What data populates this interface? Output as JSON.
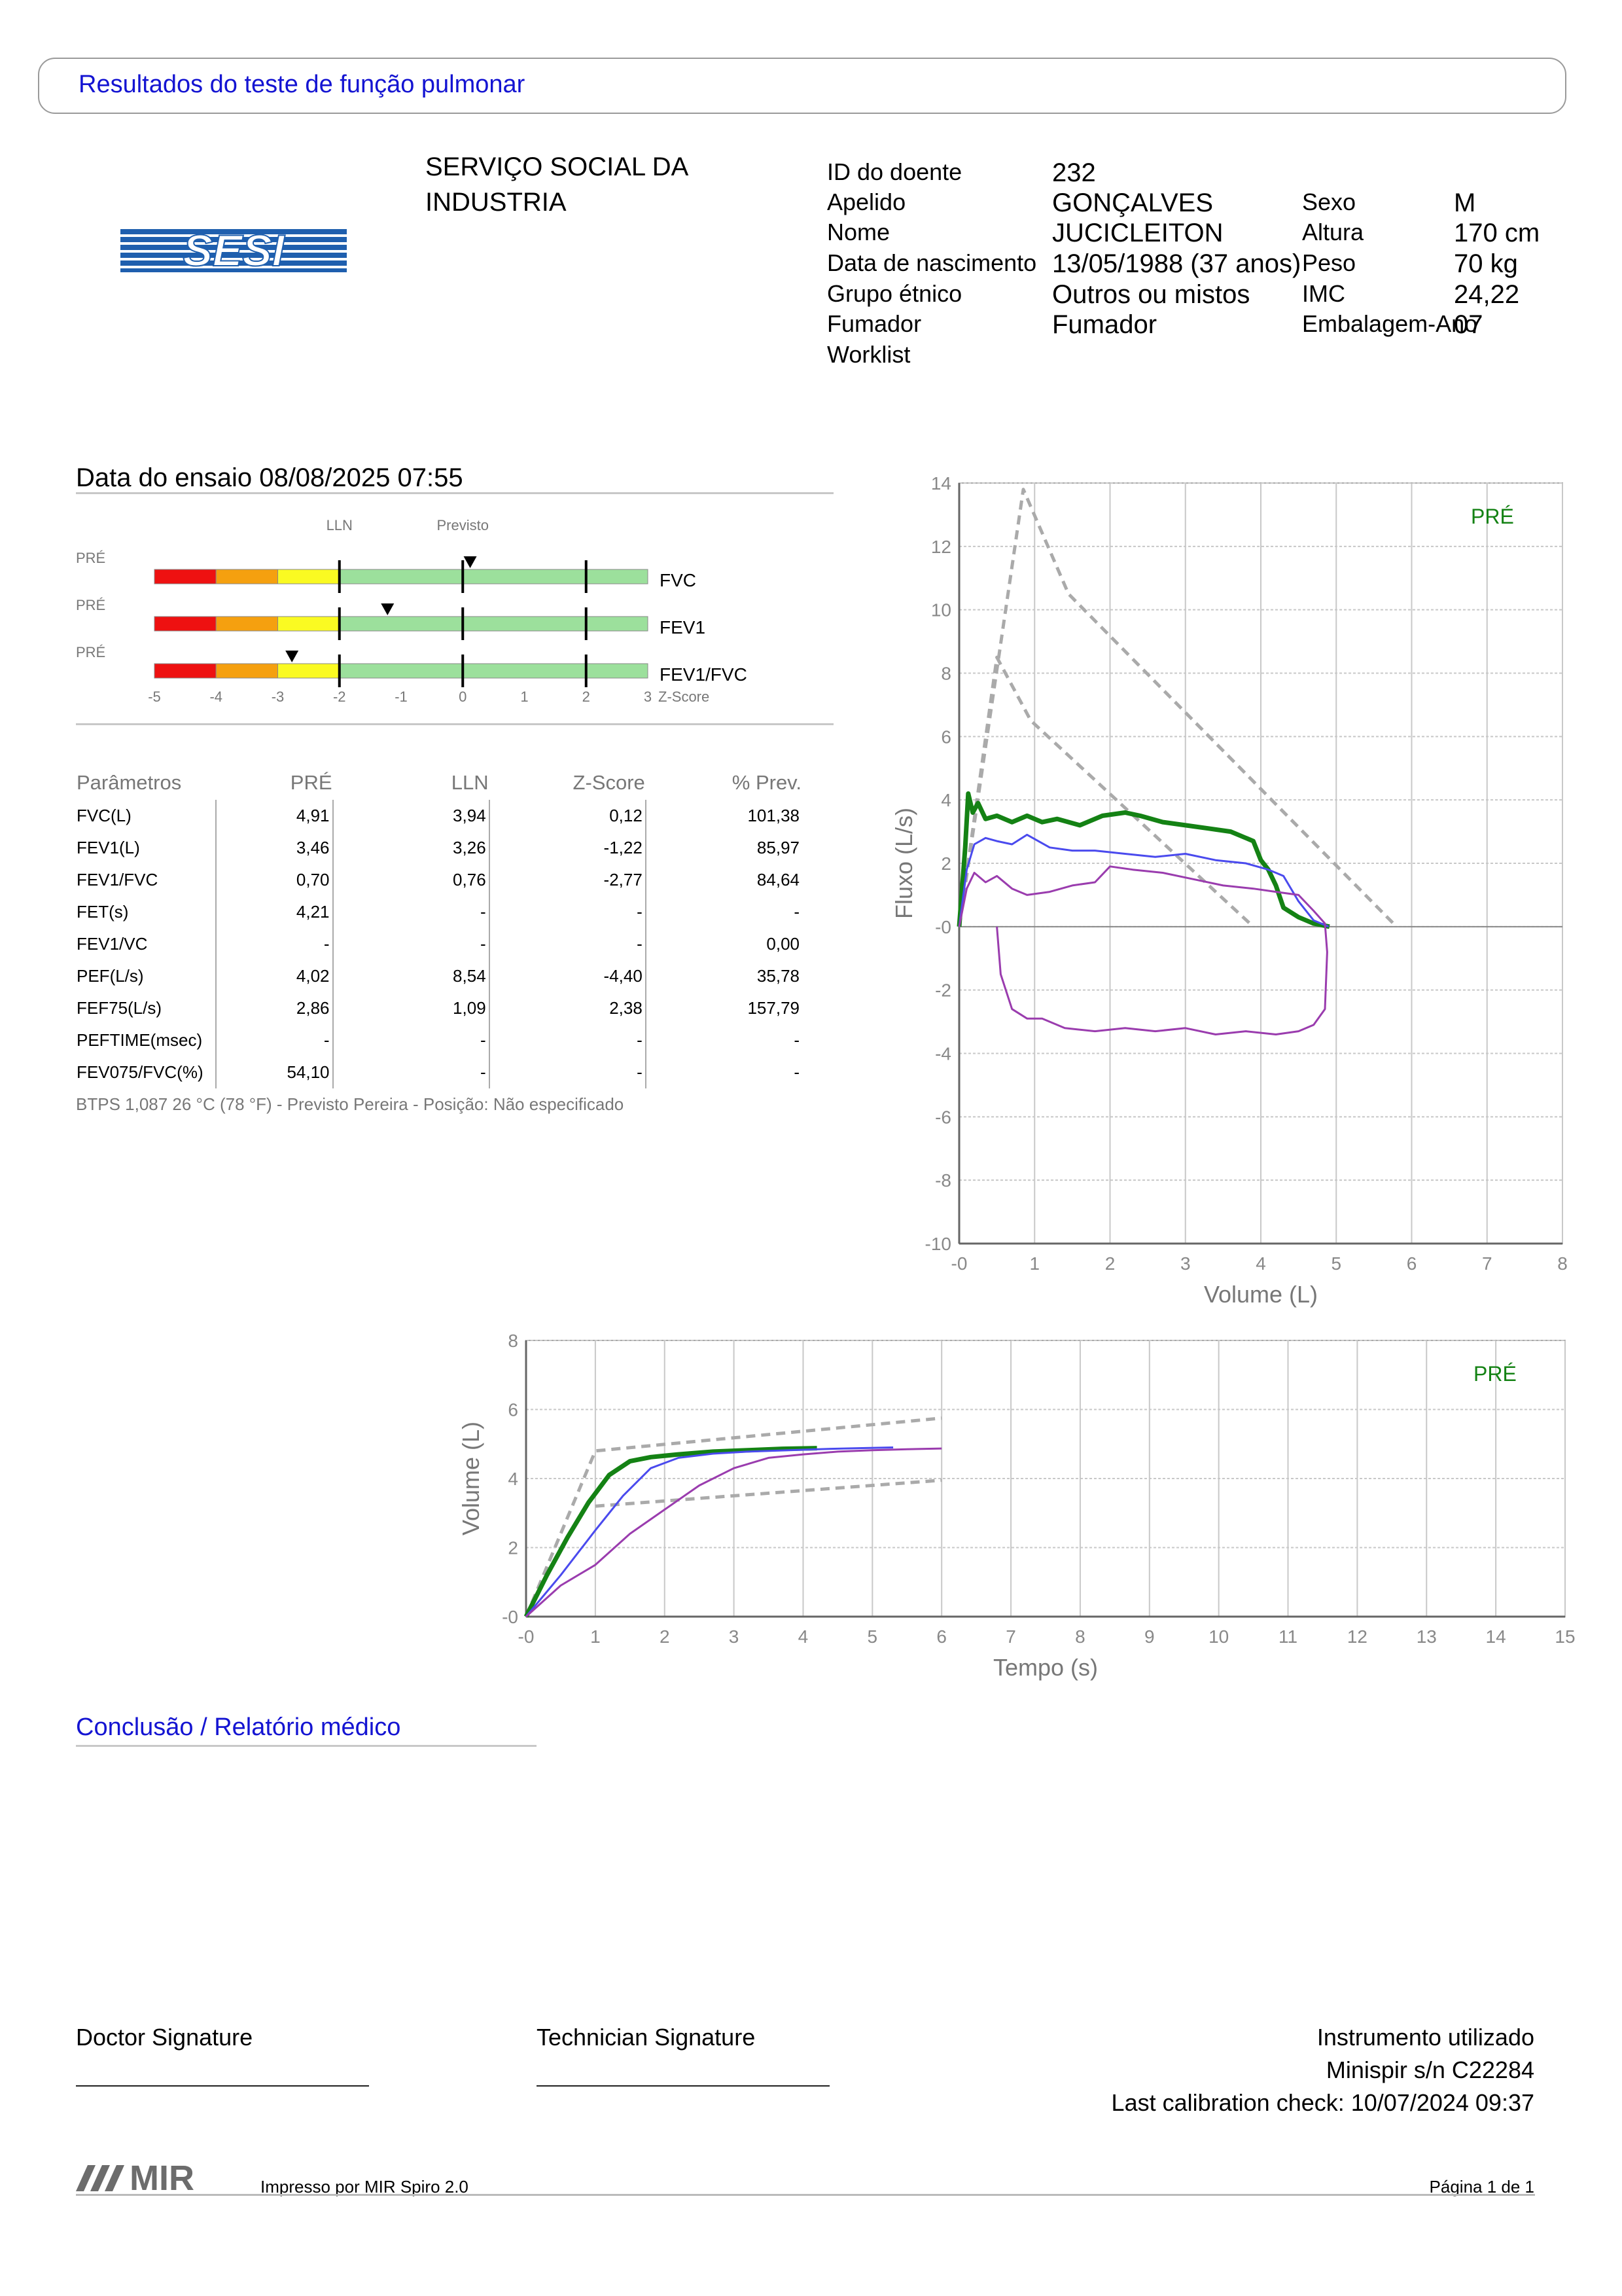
{
  "header": {
    "title": "Resultados do teste de função pulmonar"
  },
  "organization": {
    "logo_text": "SESI",
    "line1": "SERVIÇO SOCIAL DA",
    "line2": "INDUSTRIA"
  },
  "patient": {
    "id_label": "ID do doente",
    "id_value": "232",
    "surname_label": "Apelido",
    "surname_value": "GONÇALVES",
    "name_label": "Nome",
    "name_value": "JUCICLEITON",
    "dob_label": "Data de nascimento",
    "dob_value": "13/05/1988 (37 anos)",
    "ethnic_label": "Grupo étnico",
    "ethnic_value": "Outros ou mistos",
    "smoker_label": "Fumador",
    "smoker_value": "Fumador",
    "worklist_label": "Worklist",
    "sex_label": "Sexo",
    "sex_value": "M",
    "height_label": "Altura",
    "height_value": "170 cm",
    "weight_label": "Peso",
    "weight_value": "70 kg",
    "bmi_label": "IMC",
    "bmi_value": "24,22",
    "packyears_label": "Embalagem-Ano",
    "packyears_value": "07"
  },
  "test": {
    "date_label": "Data do ensaio 08/08/2025 07:55"
  },
  "zscore": {
    "lln_label": "LLN",
    "pred_label": "Previsto",
    "axis_name": "Z-Score",
    "ticks": [
      "-5",
      "-4",
      "-3",
      "-2",
      "-1",
      "0",
      "1",
      "2",
      "3"
    ],
    "bars": [
      {
        "tag": "PRÉ",
        "name": "FVC",
        "z": 0.12
      },
      {
        "tag": "PRÉ",
        "name": "FEV1",
        "z": -1.22
      },
      {
        "tag": "PRÉ",
        "name": "FEV1/FVC",
        "z": -2.77
      }
    ],
    "colors": {
      "red": "#ee1111",
      "orange": "#f5a00f",
      "yellow": "#fafa22",
      "green": "#9ce09c"
    }
  },
  "params": {
    "headers": [
      "Parâmetros",
      "PRÉ",
      "LLN",
      "Z-Score",
      "% Prev."
    ],
    "rows": [
      [
        "FVC(L)",
        "4,91",
        "3,94",
        "0,12",
        "101,38"
      ],
      [
        "FEV1(L)",
        "3,46",
        "3,26",
        "-1,22",
        "85,97"
      ],
      [
        "FEV1/FVC",
        "0,70",
        "0,76",
        "-2,77",
        "84,64"
      ],
      [
        "FET(s)",
        "4,21",
        "-",
        "-",
        "-"
      ],
      [
        "FEV1/VC",
        "-",
        "-",
        "-",
        "0,00"
      ],
      [
        "PEF(L/s)",
        "4,02",
        "8,54",
        "-4,40",
        "35,78"
      ],
      [
        "FEF75(L/s)",
        "2,86",
        "1,09",
        "2,38",
        "157,79"
      ],
      [
        "PEFTIME(msec)",
        "-",
        "-",
        "-",
        "-"
      ],
      [
        "FEV075/FVC(%)",
        "54,10",
        "-",
        "-",
        "-"
      ]
    ],
    "note": "BTPS 1,087 26 °C (78 °F) - Previsto Pereira - Posição: Não especificado"
  },
  "chart_data": [
    {
      "type": "line",
      "title": "",
      "xlabel": "Volume (L)",
      "ylabel": "Fluxo (L/s)",
      "xlim": [
        0,
        8
      ],
      "ylim": [
        -10,
        14
      ],
      "xticks": [
        "-0",
        "1",
        "2",
        "3",
        "4",
        "5",
        "6",
        "7",
        "8"
      ],
      "yticks": [
        "-10",
        "-8",
        "-6",
        "-4",
        "-2",
        "-0",
        "2",
        "4",
        "6",
        "8",
        "10",
        "12",
        "14"
      ],
      "grid": true,
      "legend": "PRÉ",
      "series": [
        {
          "color": "#aaaaaa",
          "dashed": true,
          "x": [
            0,
            0.85,
            1.45,
            5.8
          ],
          "y": [
            0,
            13.8,
            10.5,
            0
          ]
        },
        {
          "color": "#aaaaaa",
          "dashed": true,
          "x": [
            0,
            0.5,
            0.95,
            3.9
          ],
          "y": [
            0,
            8.5,
            6.5,
            0
          ]
        },
        {
          "color": "#148214",
          "bold": true,
          "x": [
            0,
            0.08,
            0.12,
            0.18,
            0.25,
            0.35,
            0.5,
            0.7,
            0.9,
            1.1,
            1.3,
            1.6,
            1.9,
            2.2,
            2.4,
            2.7,
            3.0,
            3.3,
            3.6,
            3.9,
            4.0,
            4.1,
            4.2,
            4.3,
            4.5,
            4.7,
            4.91
          ],
          "y": [
            0,
            2.5,
            4.2,
            3.6,
            3.9,
            3.4,
            3.5,
            3.3,
            3.5,
            3.3,
            3.4,
            3.2,
            3.5,
            3.6,
            3.5,
            3.3,
            3.2,
            3.1,
            3.0,
            2.7,
            2.1,
            1.8,
            1.3,
            0.6,
            0.3,
            0.1,
            0
          ]
        },
        {
          "color": "#4a4aee",
          "x": [
            0,
            0.1,
            0.2,
            0.35,
            0.5,
            0.7,
            0.9,
            1.2,
            1.5,
            1.8,
            2.2,
            2.6,
            3.0,
            3.4,
            3.8,
            4.1,
            4.3,
            4.5,
            4.7,
            4.9
          ],
          "y": [
            0,
            1.8,
            2.6,
            2.8,
            2.7,
            2.6,
            2.9,
            2.5,
            2.4,
            2.4,
            2.3,
            2.2,
            2.3,
            2.1,
            2.0,
            1.8,
            1.6,
            0.8,
            0.2,
            0
          ]
        },
        {
          "color": "#9a3cae",
          "x": [
            0,
            0.1,
            0.2,
            0.35,
            0.5,
            0.7,
            0.9,
            1.2,
            1.5,
            1.8,
            2.0,
            2.3,
            2.7,
            3.1,
            3.5,
            3.9,
            4.2,
            4.5,
            4.7,
            4.85,
            4.88,
            4.85,
            4.7,
            4.5,
            4.2,
            3.8,
            3.4,
            3.0,
            2.6,
            2.2,
            1.8,
            1.4,
            1.1,
            0.9,
            0.7,
            0.55,
            0.5
          ],
          "y": [
            0,
            1.2,
            1.7,
            1.4,
            1.6,
            1.2,
            1.0,
            1.1,
            1.3,
            1.4,
            1.9,
            1.8,
            1.7,
            1.5,
            1.3,
            1.2,
            1.1,
            1.0,
            0.5,
            0.1,
            -0.8,
            -2.6,
            -3.1,
            -3.3,
            -3.4,
            -3.3,
            -3.4,
            -3.2,
            -3.3,
            -3.2,
            -3.3,
            -3.2,
            -2.9,
            -2.9,
            -2.6,
            -1.5,
            0
          ]
        }
      ]
    },
    {
      "type": "line",
      "title": "",
      "xlabel": "Tempo (s)",
      "ylabel": "Volume (L)",
      "xlim": [
        0,
        15
      ],
      "ylim": [
        0,
        8
      ],
      "xticks": [
        "-0",
        "1",
        "2",
        "3",
        "4",
        "5",
        "6",
        "7",
        "8",
        "9",
        "10",
        "11",
        "12",
        "13",
        "14",
        "15"
      ],
      "yticks": [
        "-0",
        "2",
        "4",
        "6",
        "8"
      ],
      "grid": true,
      "legend": "PRÉ",
      "series": [
        {
          "color": "#aaaaaa",
          "dashed": true,
          "x": [
            0,
            1.0,
            6.0
          ],
          "y": [
            0,
            4.8,
            5.75
          ]
        },
        {
          "color": "#aaaaaa",
          "dashed": true,
          "x": [
            1.0,
            6.0
          ],
          "y": [
            3.2,
            3.95
          ]
        },
        {
          "color": "#148214",
          "bold": true,
          "x": [
            0,
            0.3,
            0.6,
            0.9,
            1.2,
            1.5,
            1.8,
            2.2,
            2.7,
            3.2,
            3.7,
            4.2
          ],
          "y": [
            0,
            1.2,
            2.3,
            3.3,
            4.1,
            4.5,
            4.62,
            4.7,
            4.78,
            4.82,
            4.86,
            4.88
          ]
        },
        {
          "color": "#4a4aee",
          "x": [
            0,
            0.5,
            1.0,
            1.4,
            1.8,
            2.2,
            2.7,
            3.2,
            3.8,
            4.4,
            4.8,
            5.3
          ],
          "y": [
            0,
            1.2,
            2.5,
            3.5,
            4.3,
            4.6,
            4.72,
            4.78,
            4.82,
            4.86,
            4.88,
            4.9
          ]
        },
        {
          "color": "#9a3cae",
          "x": [
            0,
            0.5,
            1.0,
            1.5,
            2.0,
            2.5,
            3.0,
            3.5,
            4.0,
            4.5,
            5.0,
            5.5,
            6.0
          ],
          "y": [
            0,
            0.9,
            1.5,
            2.4,
            3.1,
            3.8,
            4.3,
            4.6,
            4.7,
            4.78,
            4.82,
            4.85,
            4.87
          ]
        }
      ]
    }
  ],
  "conclusion": {
    "title": "Conclusão / Relatório médico"
  },
  "signatures": {
    "doctor": "Doctor Signature",
    "technician": "Technician Signature"
  },
  "instrument": {
    "title": "Instrumento utilizado",
    "model": "Minispir s/n C22284",
    "calibration": "Last calibration check: 10/07/2024 09:37"
  },
  "footer": {
    "brand": "MIR",
    "printed_by": "Impresso por MIR Spiro 2.0",
    "page": "Página 1 de 1"
  }
}
